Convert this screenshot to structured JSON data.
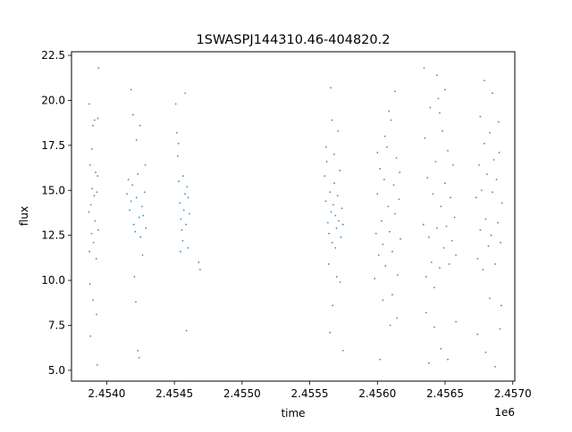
{
  "chart_data": {
    "type": "scatter",
    "title": "1SWASPJ144310.46-404820.2",
    "xlabel": "time",
    "ylabel": "flux",
    "x_offset_label": "1e6",
    "xlim": [
      2453740,
      2457015
    ],
    "ylim": [
      4.4,
      22.7
    ],
    "x_ticks": [
      2.454,
      2.4545,
      2.455,
      2.4555,
      2.456,
      2.4565,
      2.457
    ],
    "x_tick_labels": [
      "2.4540",
      "2.4545",
      "2.4550",
      "2.4555",
      "2.4560",
      "2.4565",
      "2.4570"
    ],
    "y_ticks": [
      5.0,
      7.5,
      10.0,
      12.5,
      15.0,
      17.5,
      20.0,
      22.5
    ],
    "y_tick_labels": [
      "5.0",
      "7.5",
      "10.0",
      "12.5",
      "15.0",
      "17.5",
      "20.0",
      "22.5"
    ],
    "grid": false,
    "marker_color": "#1f77b4",
    "series": [
      {
        "points": [
          [
            2453868,
            13.8
          ],
          [
            2453873,
            11.6
          ],
          [
            2453878,
            16.4
          ],
          [
            2453883,
            14.2
          ],
          [
            2453888,
            12.6
          ],
          [
            2453893,
            15.1
          ],
          [
            2453898,
            18.6
          ],
          [
            2453903,
            12.1
          ],
          [
            2453908,
            14.7
          ],
          [
            2453913,
            13.3
          ],
          [
            2453918,
            16.0
          ],
          [
            2453923,
            11.2
          ],
          [
            2453928,
            14.9
          ],
          [
            2453933,
            15.8
          ],
          [
            2453938,
            12.8
          ],
          [
            2453870,
            19.8
          ],
          [
            2453876,
            9.8
          ],
          [
            2453910,
            18.9
          ],
          [
            2453925,
            8.1
          ],
          [
            2453935,
            19.0
          ],
          [
            2453880,
            6.9
          ],
          [
            2453930,
            5.3
          ],
          [
            2453940,
            21.8
          ],
          [
            2453900,
            8.9
          ],
          [
            2453890,
            17.3
          ],
          [
            2454150,
            14.8
          ],
          [
            2454160,
            15.6
          ],
          [
            2454170,
            13.9
          ],
          [
            2454180,
            14.4
          ],
          [
            2454190,
            15.3
          ],
          [
            2454200,
            13.1
          ],
          [
            2454210,
            12.7
          ],
          [
            2454220,
            14.6
          ],
          [
            2454230,
            15.9
          ],
          [
            2454240,
            13.5
          ],
          [
            2454250,
            12.4
          ],
          [
            2454260,
            14.1
          ],
          [
            2454270,
            13.6
          ],
          [
            2454280,
            14.9
          ],
          [
            2454290,
            12.9
          ],
          [
            2454195,
            19.2
          ],
          [
            2454205,
            10.2
          ],
          [
            2454215,
            8.8
          ],
          [
            2454230,
            6.1
          ],
          [
            2454245,
            18.6
          ],
          [
            2454220,
            17.8
          ],
          [
            2454265,
            11.4
          ],
          [
            2454285,
            16.4
          ],
          [
            2454180,
            20.6
          ],
          [
            2454240,
            5.7
          ],
          [
            2454510,
            19.8
          ],
          [
            2454518,
            18.2
          ],
          [
            2454525,
            16.9
          ],
          [
            2454532,
            15.5
          ],
          [
            2454540,
            14.3
          ],
          [
            2454548,
            13.4
          ],
          [
            2454555,
            12.8
          ],
          [
            2454562,
            12.2
          ],
          [
            2454570,
            13.9
          ],
          [
            2454578,
            14.8
          ],
          [
            2454586,
            13.1
          ],
          [
            2454594,
            15.2
          ],
          [
            2454602,
            14.6
          ],
          [
            2454610,
            13.7
          ],
          [
            2454530,
            17.6
          ],
          [
            2454545,
            11.6
          ],
          [
            2454565,
            15.8
          ],
          [
            2454580,
            20.4
          ],
          [
            2454590,
            7.2
          ],
          [
            2454600,
            11.8
          ],
          [
            2454680,
            11.0
          ],
          [
            2454690,
            10.6
          ],
          [
            2455610,
            15.8
          ],
          [
            2455618,
            14.4
          ],
          [
            2455626,
            16.6
          ],
          [
            2455634,
            13.2
          ],
          [
            2455642,
            12.6
          ],
          [
            2455650,
            14.9
          ],
          [
            2455658,
            13.8
          ],
          [
            2455666,
            12.1
          ],
          [
            2455674,
            14.2
          ],
          [
            2455682,
            15.4
          ],
          [
            2455690,
            13.6
          ],
          [
            2455698,
            12.9
          ],
          [
            2455706,
            14.7
          ],
          [
            2455714,
            13.3
          ],
          [
            2455722,
            16.1
          ],
          [
            2455730,
            12.4
          ],
          [
            2455738,
            14.0
          ],
          [
            2455746,
            13.1
          ],
          [
            2455620,
            17.4
          ],
          [
            2455640,
            10.9
          ],
          [
            2455655,
            20.7
          ],
          [
            2455670,
            8.6
          ],
          [
            2455690,
            11.8
          ],
          [
            2455710,
            18.3
          ],
          [
            2455725,
            9.9
          ],
          [
            2455650,
            7.1
          ],
          [
            2455665,
            18.9
          ],
          [
            2455745,
            6.1
          ],
          [
            2455700,
            10.2
          ],
          [
            2455680,
            17.0
          ],
          [
            2455980,
            10.1
          ],
          [
            2455990,
            12.6
          ],
          [
            2456000,
            14.8
          ],
          [
            2456010,
            11.4
          ],
          [
            2456020,
            16.2
          ],
          [
            2456030,
            13.3
          ],
          [
            2456040,
            12.0
          ],
          [
            2456050,
            15.6
          ],
          [
            2456060,
            10.8
          ],
          [
            2456070,
            17.4
          ],
          [
            2456080,
            14.1
          ],
          [
            2456090,
            12.7
          ],
          [
            2456100,
            18.9
          ],
          [
            2456110,
            11.6
          ],
          [
            2456120,
            15.3
          ],
          [
            2456130,
            13.7
          ],
          [
            2456140,
            16.8
          ],
          [
            2456150,
            10.3
          ],
          [
            2456160,
            14.5
          ],
          [
            2456170,
            12.3
          ],
          [
            2456085,
            19.4
          ],
          [
            2456095,
            7.5
          ],
          [
            2456040,
            8.9
          ],
          [
            2456055,
            18.0
          ],
          [
            2456020,
            5.6
          ],
          [
            2456130,
            20.5
          ],
          [
            2456145,
            7.9
          ],
          [
            2456000,
            17.1
          ],
          [
            2456110,
            9.2
          ],
          [
            2456165,
            16.0
          ],
          [
            2456340,
            13.1
          ],
          [
            2456350,
            17.9
          ],
          [
            2456360,
            10.2
          ],
          [
            2456370,
            15.7
          ],
          [
            2456380,
            12.4
          ],
          [
            2456390,
            19.6
          ],
          [
            2456400,
            11.0
          ],
          [
            2456410,
            14.8
          ],
          [
            2456420,
            9.6
          ],
          [
            2456430,
            16.6
          ],
          [
            2456440,
            12.9
          ],
          [
            2456450,
            20.1
          ],
          [
            2456460,
            10.7
          ],
          [
            2456470,
            14.1
          ],
          [
            2456480,
            18.3
          ],
          [
            2456490,
            11.8
          ],
          [
            2456500,
            15.4
          ],
          [
            2456510,
            13.0
          ],
          [
            2456520,
            17.2
          ],
          [
            2456530,
            10.9
          ],
          [
            2456540,
            14.6
          ],
          [
            2456550,
            12.2
          ],
          [
            2456560,
            16.4
          ],
          [
            2456570,
            13.5
          ],
          [
            2456580,
            11.4
          ],
          [
            2456345,
            21.8
          ],
          [
            2456380,
            5.4
          ],
          [
            2456420,
            7.4
          ],
          [
            2456440,
            21.4
          ],
          [
            2456470,
            6.2
          ],
          [
            2456500,
            20.6
          ],
          [
            2456520,
            5.6
          ],
          [
            2456360,
            8.2
          ],
          [
            2456460,
            19.3
          ],
          [
            2456580,
            7.7
          ],
          [
            2456730,
            14.6
          ],
          [
            2456740,
            11.2
          ],
          [
            2456750,
            16.4
          ],
          [
            2456760,
            12.8
          ],
          [
            2456770,
            15.0
          ],
          [
            2456780,
            10.6
          ],
          [
            2456790,
            17.6
          ],
          [
            2456800,
            13.4
          ],
          [
            2456810,
            15.9
          ],
          [
            2456820,
            11.9
          ],
          [
            2456830,
            18.2
          ],
          [
            2456840,
            12.5
          ],
          [
            2456850,
            14.9
          ],
          [
            2456860,
            16.7
          ],
          [
            2456870,
            10.9
          ],
          [
            2456880,
            15.6
          ],
          [
            2456890,
            13.2
          ],
          [
            2456900,
            17.1
          ],
          [
            2456910,
            12.1
          ],
          [
            2456920,
            14.3
          ],
          [
            2456790,
            21.1
          ],
          [
            2456800,
            6.0
          ],
          [
            2456830,
            9.0
          ],
          [
            2456850,
            20.4
          ],
          [
            2456870,
            5.2
          ],
          [
            2456895,
            18.8
          ],
          [
            2456905,
            7.3
          ],
          [
            2456760,
            19.1
          ],
          [
            2456915,
            8.6
          ],
          [
            2456740,
            7.0
          ]
        ]
      }
    ]
  }
}
